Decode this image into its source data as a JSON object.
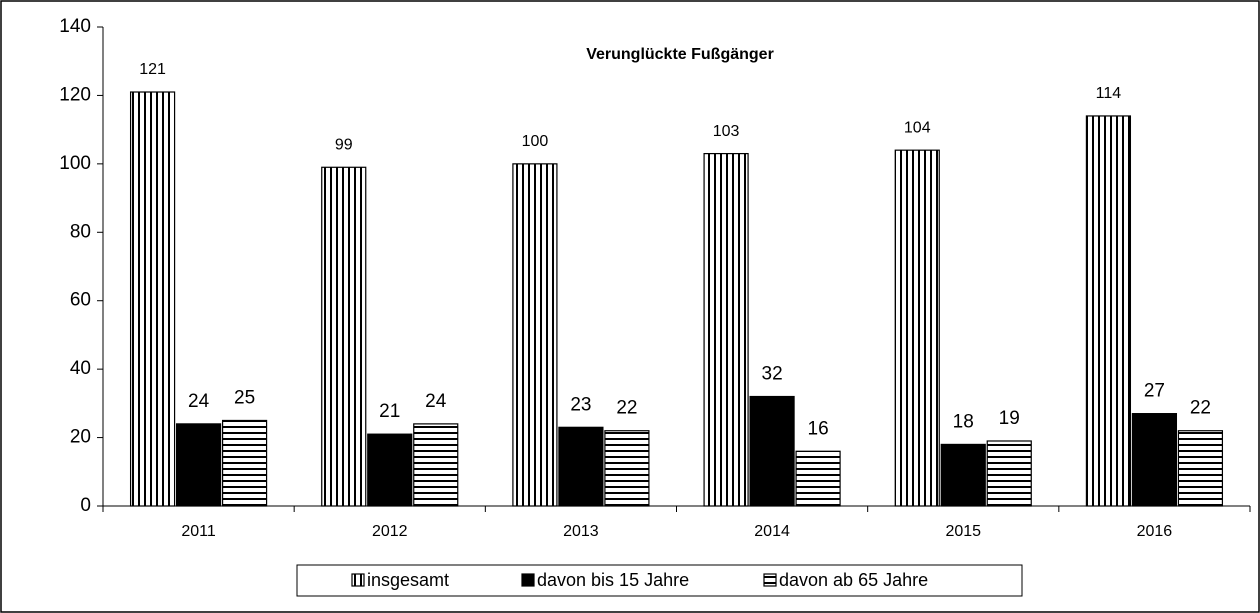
{
  "chart_data": {
    "type": "bar",
    "title": "Verunglückte Fußgänger",
    "categories": [
      "2011",
      "2012",
      "2013",
      "2014",
      "2015",
      "2016"
    ],
    "series": [
      {
        "name": "insgesamt",
        "color": "#000000",
        "hatch": "vertical",
        "values": [
          121,
          99,
          100,
          103,
          104,
          114
        ]
      },
      {
        "name": "davon bis 15 Jahre",
        "color": "#000000",
        "hatch": "solid",
        "values": [
          24,
          21,
          23,
          32,
          18,
          27
        ]
      },
      {
        "name": "davon ab 65 Jahre",
        "color": "#000000",
        "hatch": "horizontal",
        "values": [
          25,
          24,
          22,
          16,
          19,
          22
        ]
      }
    ],
    "ylim": [
      0,
      140
    ],
    "yticks": [
      0,
      20,
      40,
      60,
      80,
      100,
      120,
      140
    ],
    "grid": false,
    "legend": "bottom"
  }
}
